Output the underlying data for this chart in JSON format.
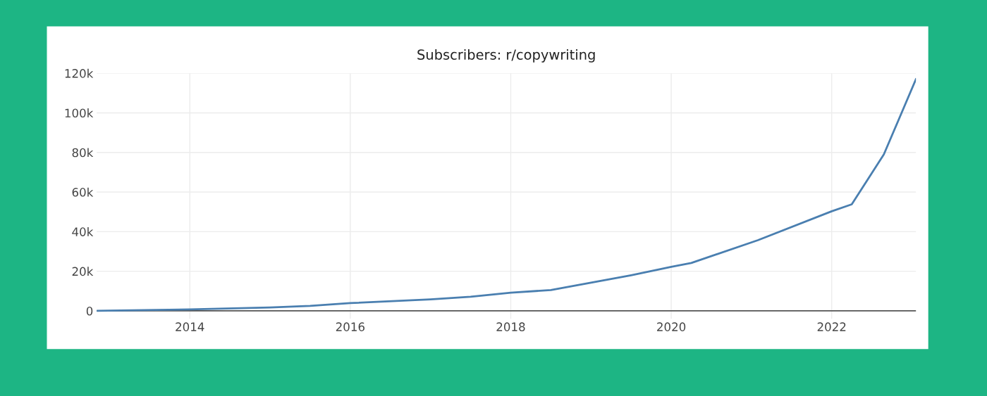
{
  "chart_data": {
    "type": "line",
    "title": "Subscribers: r/copywriting",
    "x": [
      2012.84,
      2014.0,
      2015.0,
      2015.5,
      2016.0,
      2017.0,
      2017.5,
      2018.0,
      2018.5,
      2019.0,
      2019.5,
      2020.0,
      2020.25,
      2021.08,
      2022.0,
      2022.25,
      2022.65,
      2023.05
    ],
    "series": [
      {
        "color": "#4a7fb0",
        "values": [
          0,
          700,
          1700,
          2500,
          3900,
          5800,
          7100,
          9200,
          10500,
          14200,
          18000,
          22200,
          24200,
          35700,
          50300,
          53800,
          79000,
          117000
        ]
      }
    ],
    "xlim": [
      2012.84,
      2023.05
    ],
    "xticks": [
      2014,
      2016,
      2018,
      2020,
      2022
    ],
    "ylim": [
      -4000,
      120000
    ],
    "yticks": [
      {
        "value": 0,
        "label": "0"
      },
      {
        "value": 20000,
        "label": "20k"
      },
      {
        "value": 40000,
        "label": "40k"
      },
      {
        "value": 60000,
        "label": "60k"
      },
      {
        "value": 80000,
        "label": "80k"
      },
      {
        "value": 100000,
        "label": "100k"
      },
      {
        "value": 120000,
        "label": "120k"
      }
    ],
    "grid": true,
    "marker": "none",
    "line_style": "solid",
    "legend": false
  }
}
